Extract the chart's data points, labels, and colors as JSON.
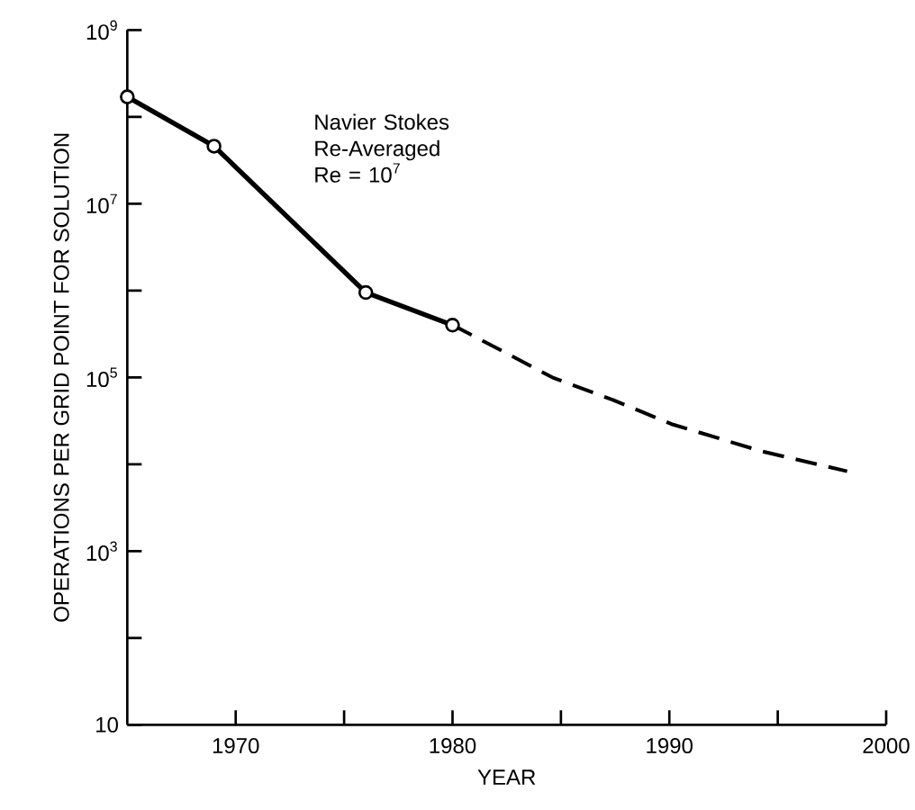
{
  "chart_data": {
    "type": "line",
    "xlabel": "YEAR",
    "ylabel": "OPERATIONS PER GRID POINT FOR SOLUTION",
    "annotations": [
      "Navier Stokes Re-Averaged Re = 10$^{7}$"
    ],
    "log": "y",
    "xlim": [
      1965,
      2000
    ],
    "ylim": [
      10,
      1000000000
    ],
    "xticks": [
      1970,
      {
        "value": 1975,
        "label": null
      },
      1980,
      {
        "value": 1985,
        "label": null
      },
      1990,
      {
        "value": 1995,
        "label": null
      },
      2000
    ],
    "yticks": [
      10,
      {
        "value": 100,
        "label": null
      },
      {
        "value": 1000,
        "label": "10$^{3}$"
      },
      {
        "value": 10000,
        "label": null
      },
      {
        "value": 100000,
        "label": "10$^{5}$"
      },
      {
        "value": 1000000,
        "label": null
      },
      {
        "value": 10000000,
        "label": "10$^{7}$"
      },
      {
        "value": 100000000,
        "label": null
      },
      {
        "value": 1000000000,
        "label": "10$^{9}$"
      }
    ],
    "series": [
      {
        "color": "#000000",
        "marker": "circle",
        "line_style": "solid",
        "x": [
          1965,
          1969,
          1976,
          1980
        ],
        "values": [
          170000000,
          46000000,
          950000,
          400000
        ]
      },
      {
        "color": "#000000",
        "marker": "none",
        "line_style": "dashed",
        "x": [
          1980,
          1982,
          1984.6,
          1987.4,
          1990.1,
          1994.3,
          1998.2
        ],
        "values": [
          400000,
          220000,
          100000,
          55000,
          29000,
          14000,
          8300
        ]
      }
    ]
  }
}
